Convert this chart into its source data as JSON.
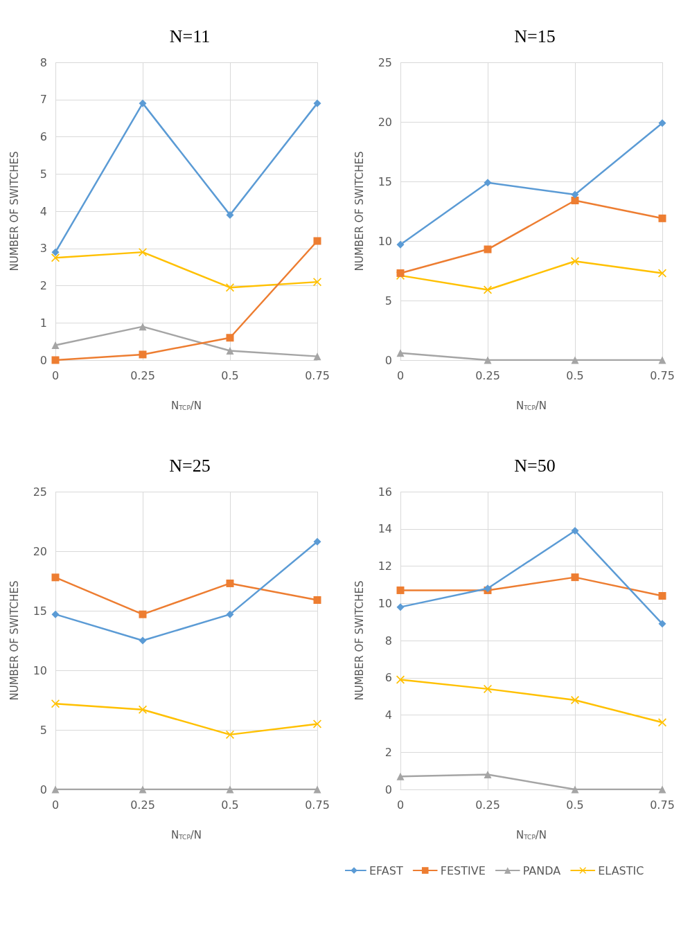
{
  "chart_data": [
    {
      "type": "line",
      "title": "N=11",
      "xlabel": "N$_{TCP}$/N",
      "ylabel": "NUMBER OF SWITCHES",
      "categories": [
        "0",
        "0.25",
        "0.5",
        "0.75"
      ],
      "ylim": [
        0,
        8
      ],
      "yticks": [
        0,
        1,
        2,
        3,
        4,
        5,
        6,
        7,
        8
      ],
      "grid": true,
      "series": [
        {
          "color": "#5b9bd5",
          "marker": "diamond",
          "values": [
            2.9,
            6.9,
            3.9,
            6.9
          ]
        },
        {
          "color": "#ed7d31",
          "marker": "square",
          "values": [
            0,
            0.15,
            0.6,
            3.2
          ]
        },
        {
          "color": "#a5a5a5",
          "marker": "triangle",
          "values": [
            0.4,
            0.9,
            0.25,
            0.1
          ]
        },
        {
          "color": "#ffc000",
          "marker": "cross",
          "values": [
            2.75,
            2.9,
            1.95,
            2.1
          ]
        }
      ]
    },
    {
      "type": "line",
      "title": "N=15",
      "xlabel": "N$_{TCP}$/N",
      "ylabel": "NUMBER OF SWITCHES",
      "categories": [
        "0",
        "0.25",
        "0.5",
        "0.75"
      ],
      "ylim": [
        0,
        25
      ],
      "yticks": [
        0,
        5,
        10,
        15,
        20,
        25
      ],
      "grid": true,
      "series": [
        {
          "color": "#5b9bd5",
          "marker": "diamond",
          "values": [
            9.7,
            14.9,
            13.9,
            19.9
          ]
        },
        {
          "color": "#ed7d31",
          "marker": "square",
          "values": [
            7.3,
            9.3,
            13.4,
            11.9
          ]
        },
        {
          "color": "#a5a5a5",
          "marker": "triangle",
          "values": [
            0.6,
            0,
            0,
            0
          ]
        },
        {
          "color": "#ffc000",
          "marker": "cross",
          "values": [
            7.1,
            5.9,
            8.3,
            7.3
          ]
        }
      ]
    },
    {
      "type": "line",
      "title": "N=25",
      "xlabel": "N$_{TCP}$/N",
      "ylabel": "NUMBER OF SWITCHES",
      "categories": [
        "0",
        "0.25",
        "0.5",
        "0.75"
      ],
      "ylim": [
        0,
        25
      ],
      "yticks": [
        0,
        5,
        10,
        15,
        20,
        25
      ],
      "grid": true,
      "series": [
        {
          "color": "#5b9bd5",
          "marker": "diamond",
          "values": [
            14.7,
            12.5,
            14.7,
            20.8
          ]
        },
        {
          "color": "#ed7d31",
          "marker": "square",
          "values": [
            17.8,
            14.7,
            17.3,
            15.9
          ]
        },
        {
          "color": "#a5a5a5",
          "marker": "triangle",
          "values": [
            0,
            0,
            0,
            0
          ]
        },
        {
          "color": "#ffc000",
          "marker": "cross",
          "values": [
            7.2,
            6.7,
            4.6,
            5.5
          ]
        }
      ]
    },
    {
      "type": "line",
      "title": "N=50",
      "xlabel": "N$_{TCP}$/N",
      "ylabel": "NUMBER OF SWITCHES",
      "categories": [
        "0",
        "0.25",
        "0.5",
        "0.75"
      ],
      "ylim": [
        0,
        16
      ],
      "yticks": [
        0,
        2,
        4,
        6,
        8,
        10,
        12,
        14,
        16
      ],
      "grid": true,
      "legend": "bottom",
      "series": [
        {
          "name": "EFAST",
          "color": "#5b9bd5",
          "marker": "diamond",
          "values": [
            9.8,
            10.8,
            13.9,
            8.9
          ]
        },
        {
          "name": "FESTIVE",
          "color": "#ed7d31",
          "marker": "square",
          "values": [
            10.7,
            10.7,
            11.4,
            10.4
          ]
        },
        {
          "name": "PANDA",
          "color": "#a5a5a5",
          "marker": "triangle",
          "values": [
            0.7,
            0.8,
            0,
            0
          ]
        },
        {
          "name": "ELASTIC",
          "color": "#ffc000",
          "marker": "cross",
          "values": [
            5.9,
            5.4,
            4.8,
            3.6
          ]
        }
      ]
    }
  ]
}
